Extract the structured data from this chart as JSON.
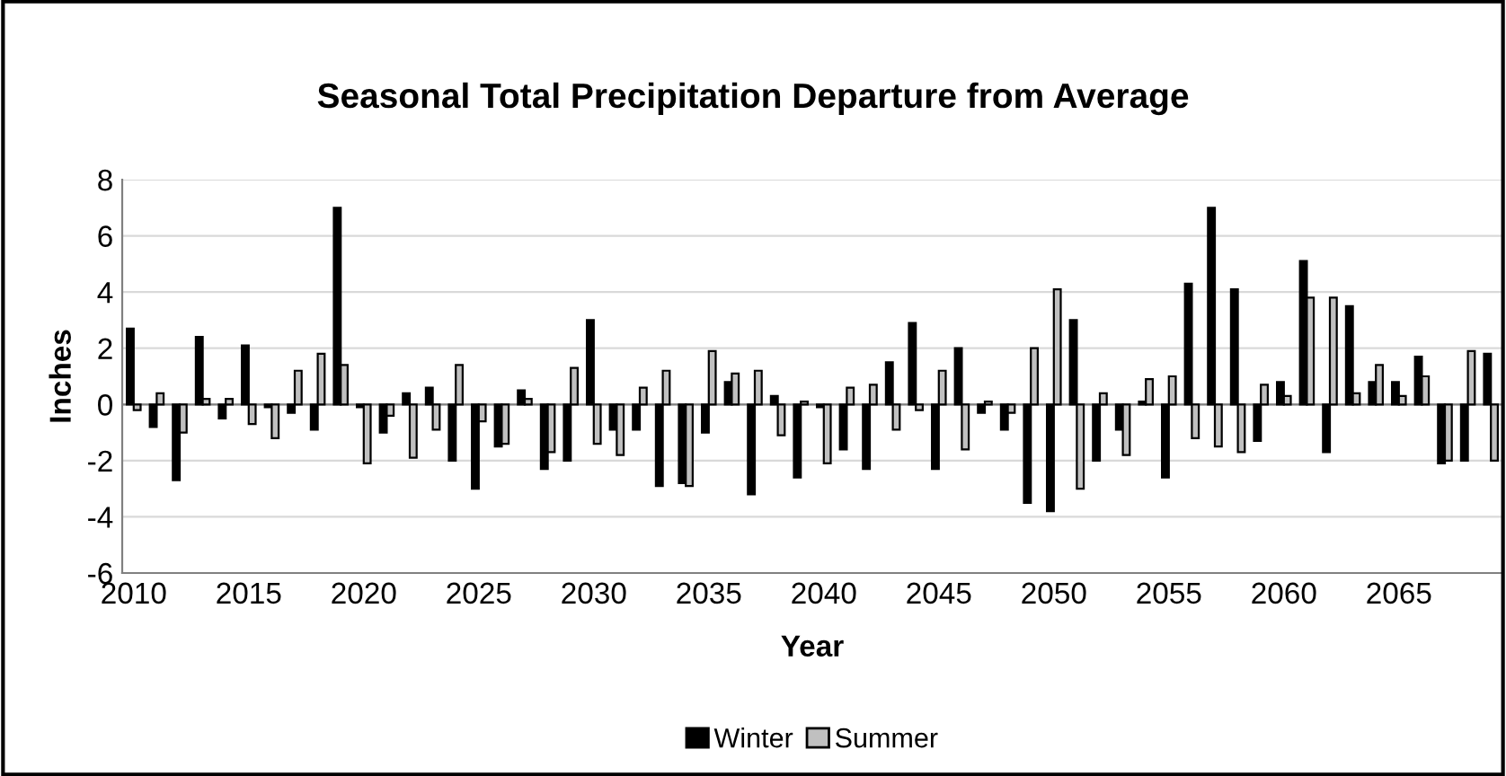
{
  "chart_data": {
    "type": "bar",
    "title": "Seasonal Total Precipitation Departure from Average",
    "xlabel": "Year",
    "ylabel": "Inches",
    "categories": [
      "2010",
      null,
      null,
      null,
      null,
      "2015",
      null,
      null,
      null,
      null,
      "2020",
      null,
      null,
      null,
      null,
      "2025",
      null,
      null,
      null,
      null,
      "2030",
      null,
      null,
      null,
      null,
      "2035",
      null,
      null,
      null,
      null,
      "2040",
      null,
      null,
      null,
      null,
      "2045",
      null,
      null,
      null,
      null,
      "2050",
      null,
      null,
      null,
      null,
      "2055",
      null,
      null,
      null,
      null,
      "2060",
      null,
      null,
      null,
      null,
      "2065",
      null,
      null,
      null,
      null
    ],
    "series": [
      {
        "name": "Winter",
        "color": "#000000",
        "values": [
          2.7,
          -0.8,
          -2.7,
          2.4,
          -0.5,
          2.1,
          -0.1,
          -0.3,
          -0.9,
          7.0,
          -0.1,
          -1.0,
          0.4,
          0.6,
          -2.0,
          -3.0,
          -1.5,
          0.5,
          -2.3,
          -2.0,
          3.0,
          -0.9,
          -0.9,
          -2.9,
          -2.8,
          -1.0,
          0.8,
          -3.2,
          0.3,
          -2.6,
          -0.1,
          -1.6,
          -2.3,
          1.5,
          2.9,
          -2.3,
          2.0,
          -0.3,
          -0.9,
          -3.5,
          -3.8,
          3.0,
          -2.0,
          -0.9,
          0.1,
          -2.6,
          4.3,
          7.0,
          4.1,
          -1.3,
          0.8,
          5.1,
          -1.7,
          3.5,
          0.8,
          0.8,
          1.7,
          -2.1,
          -2.0,
          1.8
        ]
      },
      {
        "name": "Summer",
        "color": "#c0c0c0",
        "values": [
          -0.2,
          0.4,
          -1.0,
          0.2,
          0.2,
          -0.7,
          -1.2,
          1.2,
          1.8,
          1.4,
          -2.1,
          -0.4,
          -1.9,
          -0.9,
          1.4,
          -0.6,
          -1.4,
          0.2,
          -1.7,
          1.3,
          -1.4,
          -1.8,
          0.6,
          1.2,
          -2.9,
          1.9,
          1.1,
          1.2,
          -1.1,
          0.1,
          -2.1,
          0.6,
          0.7,
          -0.9,
          -0.2,
          1.2,
          -1.6,
          0.1,
          -0.3,
          2.0,
          4.1,
          -3.0,
          0.4,
          -1.8,
          0.9,
          1.0,
          -1.2,
          -1.5,
          -1.7,
          0.7,
          0.3,
          3.8,
          3.8,
          0.4,
          1.4,
          0.3,
          1.0,
          -2.0,
          1.9,
          -2.0
        ]
      }
    ],
    "ylim": [
      -6,
      8
    ],
    "yticks": [
      -6,
      -4,
      -2,
      0,
      2,
      4,
      6,
      8
    ],
    "grid": "y",
    "legend": "bottom"
  }
}
